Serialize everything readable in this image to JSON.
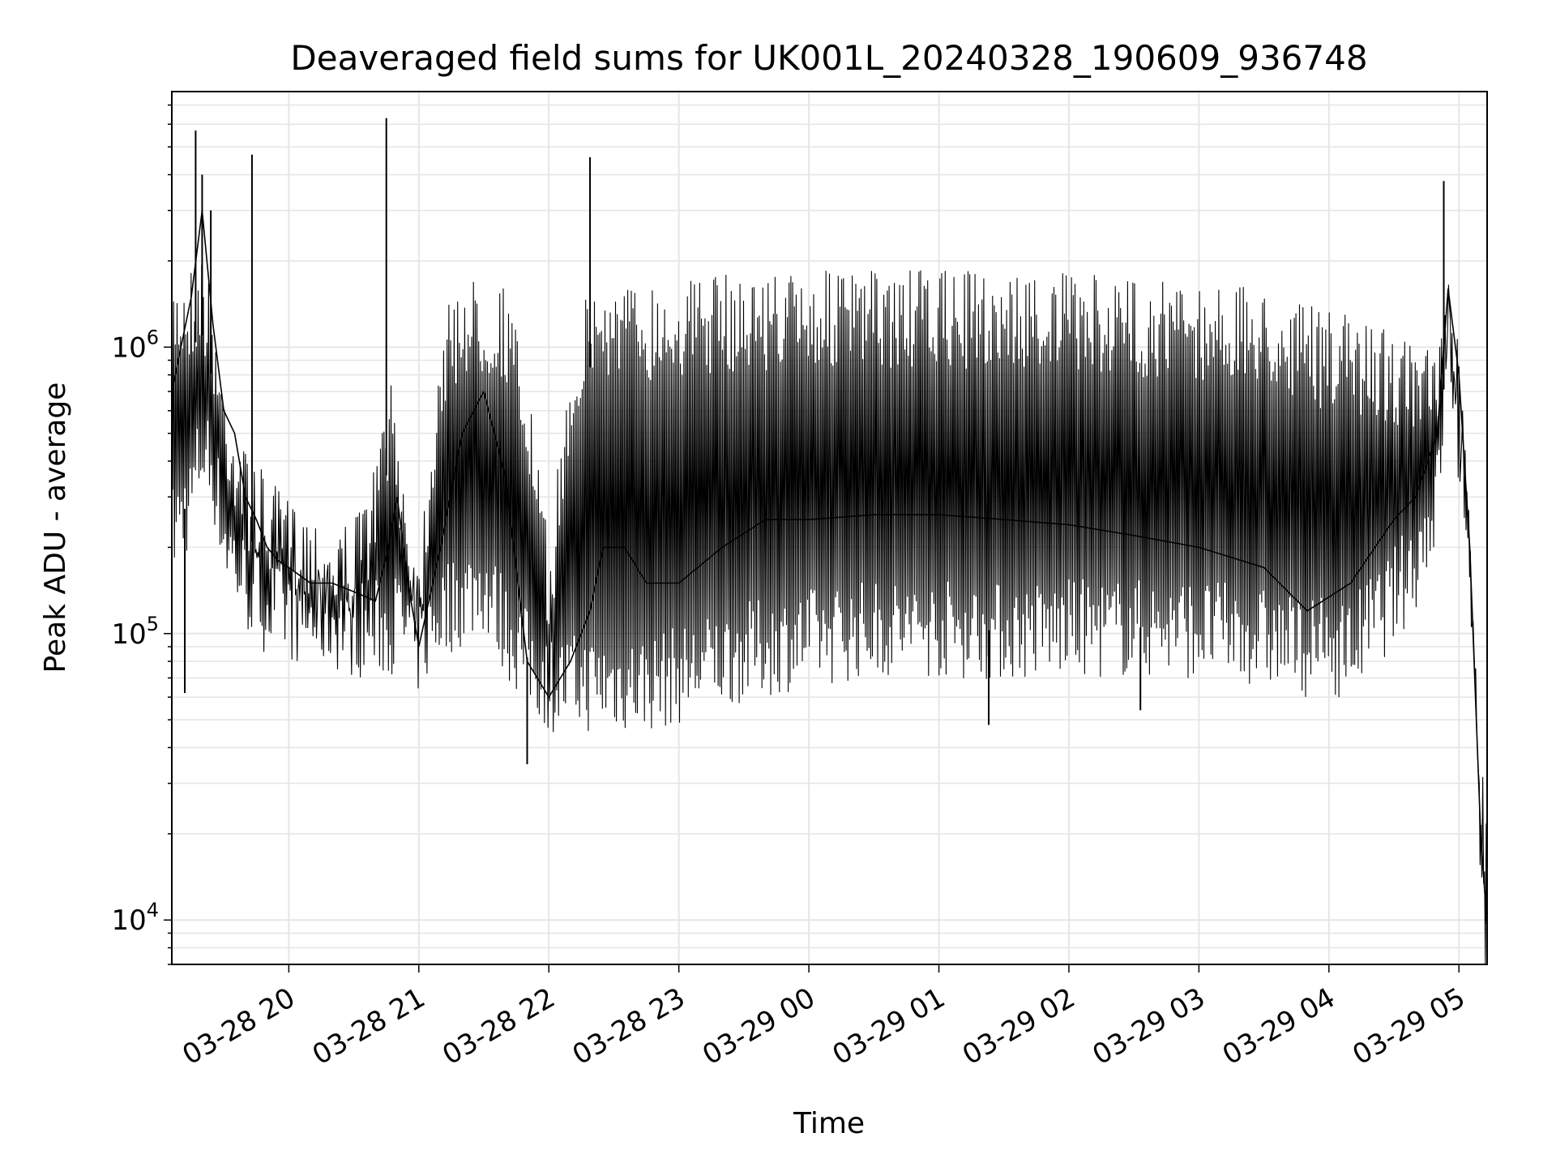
{
  "chart_data": {
    "type": "line",
    "title": "Deaveraged field sums for UK001L_20240328_190609_936748",
    "xlabel": "Time",
    "ylabel": "Peak ADU - average",
    "yscale": "log",
    "ylim": [
      7000,
      7800000
    ],
    "xlim": [
      "2024-03-28 19:06",
      "2024-03-29 05:13"
    ],
    "grid": true,
    "x_ticks": [
      {
        "t": "2024-03-28 20:00",
        "label": "03-28 20"
      },
      {
        "t": "2024-03-28 21:00",
        "label": "03-28 21"
      },
      {
        "t": "2024-03-28 22:00",
        "label": "03-28 22"
      },
      {
        "t": "2024-03-28 23:00",
        "label": "03-28 23"
      },
      {
        "t": "2024-03-29 00:00",
        "label": "03-29 00"
      },
      {
        "t": "2024-03-29 01:00",
        "label": "03-29 01"
      },
      {
        "t": "2024-03-29 02:00",
        "label": "03-29 02"
      },
      {
        "t": "2024-03-29 03:00",
        "label": "03-29 03"
      },
      {
        "t": "2024-03-29 04:00",
        "label": "03-29 04"
      },
      {
        "t": "2024-03-29 05:00",
        "label": "03-29 05"
      }
    ],
    "y_ticks": [
      {
        "value": 10000,
        "base": "10",
        "exp": "4"
      },
      {
        "value": 100000,
        "base": "10",
        "exp": "5"
      },
      {
        "value": 1000000,
        "base": "10",
        "exp": "6"
      }
    ],
    "series": [
      {
        "color": "#000000",
        "x": [
          "2024-03-28 19:06",
          "2024-03-28 19:15",
          "2024-03-28 19:20",
          "2024-03-28 19:25",
          "2024-03-28 19:30",
          "2024-03-28 19:35",
          "2024-03-28 19:40",
          "2024-03-28 19:45",
          "2024-03-28 19:50",
          "2024-03-28 19:55",
          "2024-03-28 20:00",
          "2024-03-28 20:10",
          "2024-03-28 20:20",
          "2024-03-28 20:30",
          "2024-03-28 20:40",
          "2024-03-28 20:46",
          "2024-03-28 20:50",
          "2024-03-28 20:55",
          "2024-03-28 21:00",
          "2024-03-28 21:10",
          "2024-03-28 21:20",
          "2024-03-28 21:30",
          "2024-03-28 21:40",
          "2024-03-28 21:50",
          "2024-03-28 22:00",
          "2024-03-28 22:10",
          "2024-03-28 22:19",
          "2024-03-28 22:25",
          "2024-03-28 22:35",
          "2024-03-28 22:45",
          "2024-03-28 23:00",
          "2024-03-28 23:20",
          "2024-03-28 23:40",
          "2024-03-29 00:00",
          "2024-03-29 00:30",
          "2024-03-29 01:00",
          "2024-03-29 01:30",
          "2024-03-29 02:00",
          "2024-03-29 02:30",
          "2024-03-29 03:00",
          "2024-03-29 03:30",
          "2024-03-29 03:50",
          "2024-03-29 04:10",
          "2024-03-29 04:30",
          "2024-03-29 04:40",
          "2024-03-29 04:50",
          "2024-03-29 04:55",
          "2024-03-29 05:00",
          "2024-03-29 05:05",
          "2024-03-29 05:10",
          "2024-03-29 05:13"
        ],
        "y": [
          700000,
          1500000,
          3000000,
          1200000,
          600000,
          500000,
          300000,
          250000,
          200000,
          180000,
          170000,
          150000,
          150000,
          140000,
          130000,
          200000,
          300000,
          150000,
          90000,
          200000,
          500000,
          700000,
          350000,
          80000,
          60000,
          80000,
          120000,
          200000,
          200000,
          150000,
          150000,
          200000,
          250000,
          250000,
          260000,
          260000,
          250000,
          240000,
          220000,
          200000,
          170000,
          120000,
          150000,
          250000,
          300000,
          500000,
          1600000,
          800000,
          200000,
          20000,
          9500
        ],
        "band_lo": [
          150000,
          200000,
          300000,
          250000,
          150000,
          120000,
          100000,
          90000,
          85000,
          80000,
          80000,
          75000,
          75000,
          70000,
          70000,
          70000,
          75000,
          70000,
          60000,
          80000,
          90000,
          100000,
          70000,
          55000,
          45000,
          45000,
          45000,
          45000,
          45000,
          45000,
          48000,
          55000,
          60000,
          65000,
          70000,
          70000,
          68000,
          70000,
          70000,
          70000,
          65000,
          60000,
          60000,
          90000,
          120000,
          200000,
          800000,
          300000,
          150000,
          20000,
          9500
        ],
        "band_hi": [
          1800000,
          2000000,
          2200000,
          1500000,
          800000,
          600000,
          450000,
          400000,
          350000,
          320000,
          300000,
          280000,
          250000,
          250000,
          400000,
          800000,
          600000,
          300000,
          200000,
          1200000,
          1800000,
          1700000,
          1700000,
          800000,
          200000,
          1000000,
          1700000,
          1700000,
          1700000,
          1700000,
          1750000,
          1800000,
          1850000,
          1850000,
          1850000,
          1850000,
          1850000,
          1800000,
          1750000,
          1700000,
          1600000,
          1400000,
          1300000,
          1200000,
          1000000,
          1000000,
          1800000,
          1000000,
          300000,
          25000,
          9500
        ],
        "spikes": [
          {
            "t": "2024-03-28 19:17",
            "value": 5700000
          },
          {
            "t": "2024-03-28 19:20",
            "value": 4000000
          },
          {
            "t": "2024-03-28 19:24",
            "value": 3000000
          },
          {
            "t": "2024-03-28 19:43",
            "value": 4700000
          },
          {
            "t": "2024-03-28 20:45",
            "value": 6300000
          },
          {
            "t": "2024-03-28 22:19",
            "value": 4600000
          },
          {
            "t": "2024-03-29 04:53",
            "value": 3800000
          }
        ],
        "dips": [
          {
            "t": "2024-03-28 19:12",
            "value": 62000
          },
          {
            "t": "2024-03-28 21:50",
            "value": 35000
          },
          {
            "t": "2024-03-29 01:23",
            "value": 48000
          },
          {
            "t": "2024-03-29 02:33",
            "value": 54000
          }
        ]
      }
    ]
  }
}
